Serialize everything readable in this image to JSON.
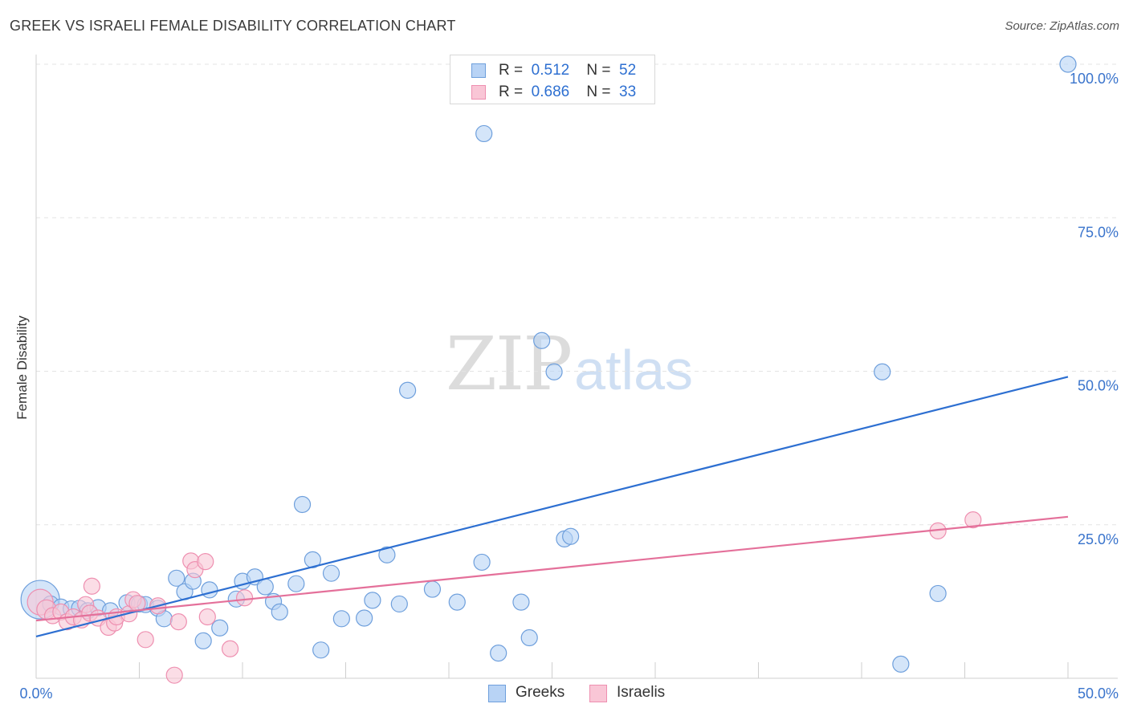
{
  "header": {
    "title": "GREEK VS ISRAELI FEMALE DISABILITY CORRELATION CHART",
    "source": "Source: ZipAtlas.com"
  },
  "watermark": {
    "zip": "ZIP",
    "atlas": "atlas"
  },
  "legend": {
    "greeks": {
      "r_label": "R =",
      "r_value": "0.512",
      "n_label": "N =",
      "n_value": "52"
    },
    "israelis": {
      "r_label": "R =",
      "r_value": "0.686",
      "n_label": "N =",
      "n_value": "33"
    }
  },
  "bottom_legend": {
    "greeks": "Greeks",
    "israelis": "Israelis"
  },
  "colors": {
    "greeks_fill": "#b8d3f5",
    "greeks_stroke": "#6e9fdc",
    "greeks_line": "#2d6fd1",
    "israelis_fill": "#f9c6d6",
    "israelis_stroke": "#ee8fb0",
    "israelis_line": "#e4709a",
    "tick_label": "#3a74cc",
    "grid": "#e3e3e3"
  },
  "chart_data": {
    "type": "scatter",
    "title": "GREEK VS ISRAELI FEMALE DISABILITY CORRELATION CHART",
    "xlabel": "",
    "ylabel": "Female Disability",
    "xlim": [
      0,
      50
    ],
    "ylim": [
      0,
      100
    ],
    "x_tick_labels": [
      "0.0%",
      "50.0%"
    ],
    "y_tick_labels": [
      "25.0%",
      "50.0%",
      "75.0%",
      "100.0%"
    ],
    "y_ticks": [
      25,
      50,
      75,
      100
    ],
    "grid": true,
    "legend_position": "top-center",
    "series": [
      {
        "name": "Greeks",
        "r": 0.512,
        "n": 52,
        "trend": {
          "x": [
            0,
            50
          ],
          "y": [
            6.8,
            49.1
          ]
        },
        "points": [
          [
            0.2,
            12.8,
            24
          ],
          [
            0.7,
            12.1,
            10
          ],
          [
            1.2,
            11.6,
            10
          ],
          [
            1.7,
            11.3,
            10
          ],
          [
            2.1,
            11.4,
            10
          ],
          [
            2.5,
            11.0,
            10
          ],
          [
            3.0,
            11.5,
            10
          ],
          [
            3.6,
            11.0,
            10
          ],
          [
            4.4,
            12.3,
            10
          ],
          [
            5.0,
            12.1,
            10
          ],
          [
            5.3,
            12.0,
            10
          ],
          [
            5.9,
            11.4,
            10
          ],
          [
            6.2,
            9.7,
            10
          ],
          [
            6.8,
            16.3,
            10
          ],
          [
            7.2,
            14.1,
            10
          ],
          [
            7.6,
            15.8,
            10
          ],
          [
            8.1,
            6.1,
            10
          ],
          [
            8.4,
            14.4,
            10
          ],
          [
            8.9,
            8.2,
            10
          ],
          [
            9.7,
            12.9,
            10
          ],
          [
            10.0,
            15.8,
            10
          ],
          [
            10.6,
            16.5,
            10
          ],
          [
            11.1,
            14.9,
            10
          ],
          [
            11.5,
            12.5,
            10
          ],
          [
            11.8,
            10.8,
            10
          ],
          [
            12.6,
            15.4,
            10
          ],
          [
            12.9,
            28.3,
            10
          ],
          [
            13.4,
            19.3,
            10
          ],
          [
            13.8,
            4.6,
            10
          ],
          [
            14.3,
            17.1,
            10
          ],
          [
            14.8,
            9.7,
            10
          ],
          [
            15.9,
            9.8,
            10
          ],
          [
            16.3,
            12.7,
            10
          ],
          [
            17.0,
            20.1,
            10
          ],
          [
            17.6,
            12.1,
            10
          ],
          [
            18.0,
            46.9,
            10
          ],
          [
            19.2,
            14.5,
            10
          ],
          [
            20.4,
            12.4,
            10
          ],
          [
            21.6,
            18.9,
            10
          ],
          [
            21.7,
            88.7,
            10
          ],
          [
            22.4,
            4.1,
            10
          ],
          [
            23.5,
            12.4,
            10
          ],
          [
            23.9,
            6.6,
            10
          ],
          [
            24.5,
            55.0,
            10
          ],
          [
            25.1,
            49.9,
            10
          ],
          [
            25.6,
            22.7,
            10
          ],
          [
            25.9,
            23.1,
            10
          ],
          [
            41.0,
            49.9,
            10
          ],
          [
            41.9,
            2.3,
            10
          ],
          [
            43.7,
            13.8,
            10
          ],
          [
            50.0,
            100.0,
            10
          ]
        ]
      },
      {
        "name": "Israelis",
        "r": 0.686,
        "n": 33,
        "trend": {
          "x": [
            0,
            50
          ],
          "y": [
            9.4,
            26.3
          ]
        },
        "points": [
          [
            0.2,
            12.4,
            16
          ],
          [
            0.5,
            11.2,
            12
          ],
          [
            0.8,
            10.2,
            10
          ],
          [
            1.2,
            10.8,
            10
          ],
          [
            1.5,
            9.2,
            10
          ],
          [
            1.8,
            10.0,
            10
          ],
          [
            2.2,
            9.5,
            10
          ],
          [
            2.4,
            12.0,
            10
          ],
          [
            2.6,
            10.6,
            10
          ],
          [
            2.7,
            15.0,
            10
          ],
          [
            3.0,
            9.8,
            10
          ],
          [
            3.5,
            8.3,
            10
          ],
          [
            3.8,
            9.0,
            10
          ],
          [
            3.9,
            10.0,
            10
          ],
          [
            4.5,
            10.5,
            10
          ],
          [
            4.7,
            12.8,
            10
          ],
          [
            4.9,
            12.2,
            10
          ],
          [
            5.3,
            6.3,
            10
          ],
          [
            5.9,
            11.8,
            10
          ],
          [
            6.7,
            0.5,
            10
          ],
          [
            6.9,
            9.2,
            10
          ],
          [
            7.5,
            19.1,
            10
          ],
          [
            7.7,
            17.7,
            10
          ],
          [
            8.2,
            19.0,
            10
          ],
          [
            8.3,
            10.0,
            10
          ],
          [
            9.4,
            4.8,
            10
          ],
          [
            10.1,
            13.1,
            10
          ],
          [
            43.7,
            24.0,
            10
          ],
          [
            45.4,
            25.8,
            10
          ]
        ]
      }
    ]
  }
}
